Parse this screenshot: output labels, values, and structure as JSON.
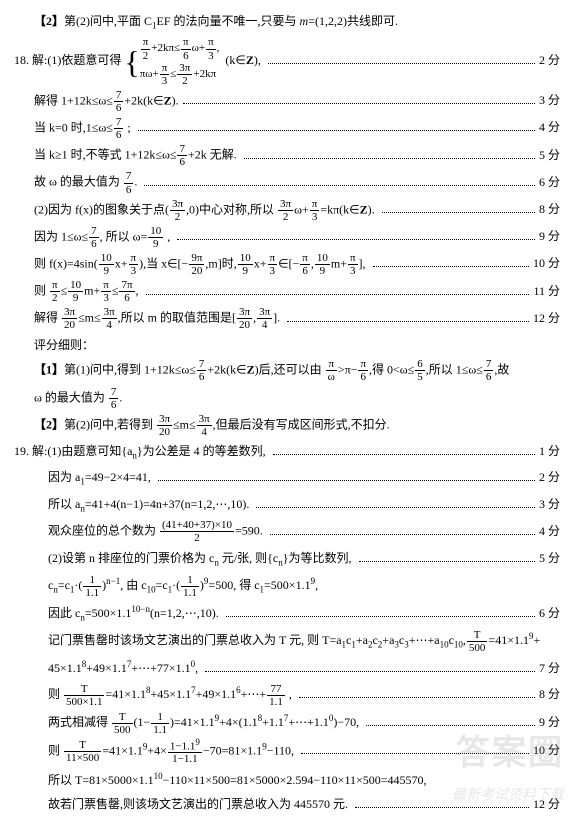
{
  "lines": [
    {
      "type": "plain",
      "indent": 1,
      "html": "<span class='bold'>【2】</span>第(2)问中,平面 C<sub>1</sub>EF 的法向量不唯一,只要与 <i>m</i>=(1,2,2)共线即可."
    },
    {
      "type": "scored",
      "indent": 0,
      "score": "2 分",
      "html": "18. 解:(1)依题意可得 <span class='brace-block'><span class='brace'>{</span><span class='brace-content'><span class='frac'><span class='num'>π</span><span class='den'>2</span></span>+2kπ≤<span class='frac'><span class='num'>π</span><span class='den'>6</span></span>ω+<span class='frac'><span class='num'>π</span><span class='den'>3</span></span>,<br>πω+<span class='frac'><span class='num'>π</span><span class='den'>3</span></span>≤<span class='frac'><span class='num'>3π</span><span class='den'>2</span></span>+2kπ</span></span>&nbsp;&nbsp;(k∈<b>Z</b>),&nbsp;"
    },
    {
      "type": "scored",
      "indent": 1,
      "score": "3 分",
      "html": "解得 1+12k≤ω≤<span class='frac'><span class='num'>7</span><span class='den'>6</span></span>+2k(k∈<b>Z</b>)."
    },
    {
      "type": "scored",
      "indent": 1,
      "score": "4 分",
      "html": "当 k=0 时,1≤ω≤<span class='frac'><span class='num'>7</span><span class='den'>6</span></span> ;&nbsp;"
    },
    {
      "type": "scored",
      "indent": 1,
      "score": "5 分",
      "html": "当 k≥1 时,不等式 1+12k≤ω≤<span class='frac'><span class='num'>7</span><span class='den'>6</span></span>+2k 无解.&nbsp;"
    },
    {
      "type": "scored",
      "indent": 1,
      "score": "6 分",
      "html": "故 ω 的最大值为 <span class='frac'><span class='num'>7</span><span class='den'>6</span></span>.&nbsp;"
    },
    {
      "type": "scored",
      "indent": 1,
      "score": "8 分",
      "html": "(2)因为 f(x)的图象关于点(<span class='frac'><span class='num'>3π</span><span class='den'>2</span></span>,0)中心对称,所以 <span class='frac'><span class='num'>3π</span><span class='den'>2</span></span>ω+<span class='frac'><span class='num'>π</span><span class='den'>3</span></span>=kπ(k∈<b>Z</b>).&nbsp;"
    },
    {
      "type": "scored",
      "indent": 1,
      "score": "9 分",
      "html": "因为 1≤ω≤<span class='frac'><span class='num'>7</span><span class='den'>6</span></span>, 所以 ω=<span class='frac'><span class='num'>10</span><span class='den'>9</span></span> ,&nbsp;"
    },
    {
      "type": "scored",
      "indent": 1,
      "score": "10 分",
      "html": "则 f(x)=4sin(<span class='frac'><span class='num'>10</span><span class='den'>9</span></span>x+<span class='frac'><span class='num'>π</span><span class='den'>3</span></span>),当 x∈[−<span class='frac'><span class='num'>9π</span><span class='den'>20</span></span>,m]时,<span class='frac'><span class='num'>10</span><span class='den'>9</span></span>x+<span class='frac'><span class='num'>π</span><span class='den'>3</span></span>∈[−<span class='frac'><span class='num'>π</span><span class='den'>6</span></span>,<span class='frac'><span class='num'>10</span><span class='den'>9</span></span>m+<span class='frac'><span class='num'>π</span><span class='den'>3</span></span>],&nbsp;"
    },
    {
      "type": "scored",
      "indent": 1,
      "score": "11 分",
      "html": "则 <span class='frac'><span class='num'>π</span><span class='den'>2</span></span>≤<span class='frac'><span class='num'>10</span><span class='den'>9</span></span>m+<span class='frac'><span class='num'>π</span><span class='den'>3</span></span>≤<span class='frac'><span class='num'>7π</span><span class='den'>6</span></span>,&nbsp;"
    },
    {
      "type": "scored",
      "indent": 1,
      "score": "12 分",
      "html": "解得 <span class='frac'><span class='num'>3π</span><span class='den'>20</span></span>≤m≤<span class='frac'><span class='num'>3π</span><span class='den'>4</span></span>,所以 m 的取值范围是[<span class='frac'><span class='num'>3π</span><span class='den'>20</span></span>,<span class='frac'><span class='num'>3π</span><span class='den'>4</span></span>].&nbsp;"
    },
    {
      "type": "plain",
      "indent": 1,
      "html": "评分细则："
    },
    {
      "type": "plain",
      "indent": 1,
      "html": "<span class='bold'>【1】</span>第(1)问中,得到 1+12k≤ω≤<span class='frac'><span class='num'>7</span><span class='den'>6</span></span>+2k(k∈<b>Z</b>)后,还可以由 <span class='frac'><span class='num'>π</span><span class='den'>ω</span></span>&gt;π−<span class='frac'><span class='num'>π</span><span class='den'>6</span></span>,得 0&lt;ω≤<span class='frac'><span class='num'>6</span><span class='den'>5</span></span>,所以 1≤ω≤<span class='frac'><span class='num'>7</span><span class='den'>6</span></span>,故"
    },
    {
      "type": "plain",
      "indent": 1,
      "html": "ω 的最大值为 <span class='frac'><span class='num'>7</span><span class='den'>6</span></span>."
    },
    {
      "type": "plain",
      "indent": 1,
      "html": "<span class='bold'>【2】</span>第(2)问中,若得到 <span class='frac'><span class='num'>3π</span><span class='den'>20</span></span>≤m≤<span class='frac'><span class='num'>3π</span><span class='den'>4</span></span>,但最后没有写成区间形式,不扣分."
    },
    {
      "type": "scored",
      "indent": 0,
      "score": "1 分",
      "html": "19. 解:(1)由题意可知{a<sub>n</sub>}为公差是 4 的等差数列,&nbsp;"
    },
    {
      "type": "scored",
      "indent": 2,
      "score": "2 分",
      "html": "因为 a<sub>1</sub>=49−2×4=41,&nbsp;"
    },
    {
      "type": "scored",
      "indent": 2,
      "score": "3 分",
      "html": "所以 a<sub>n</sub>=41+4(n−1)=4n+37(n=1,2,⋯,10).&nbsp;"
    },
    {
      "type": "scored",
      "indent": 2,
      "score": "4 分",
      "html": "观众座位的总个数为 <span class='frac'><span class='num'>(41+40+37)×10</span><span class='den'>2</span></span>=590.&nbsp;"
    },
    {
      "type": "scored",
      "indent": 2,
      "score": "5 分",
      "html": "(2)设第 n 排座位的门票价格为 c<sub>n</sub> 元/张, 则{c<sub>n</sub>}为等比数列,&nbsp;"
    },
    {
      "type": "plain",
      "indent": 2,
      "html": "c<sub>n</sub>=c<sub>1</sub>·(<span class='frac'><span class='num'>1</span><span class='den'>1.1</span></span>)<sup>n−1</sup>, 由 c<sub>10</sub>=c<sub>1</sub>·(<span class='frac'><span class='num'>1</span><span class='den'>1.1</span></span>)<sup>9</sup>=500, 得 c<sub>1</sub>=500×1.1<sup>9</sup>,"
    },
    {
      "type": "scored",
      "indent": 2,
      "score": "6 分",
      "html": "因此 c<sub>n</sub>=500×1.1<sup>10−n</sup>(n=1,2,⋯,10).&nbsp;"
    },
    {
      "type": "plain",
      "indent": 2,
      "html": "记门票售罄时该场文艺演出的门票总收入为 T 元, 则 T=a<sub>1</sub>c<sub>1</sub>+a<sub>2</sub>c<sub>2</sub>+a<sub>3</sub>c<sub>3</sub>+⋯+a<sub>10</sub>c<sub>10</sub>,<span class='frac'><span class='num'>T</span><span class='den'>500</span></span>=41×1.1<sup>9</sup>+"
    },
    {
      "type": "scored",
      "indent": 2,
      "score": "7 分",
      "html": "45×1.1<sup>8</sup>+49×1.1<sup>7</sup>+⋯+77×1.1<sup>0</sup>,&nbsp;"
    },
    {
      "type": "scored",
      "indent": 2,
      "score": "8 分",
      "html": "则 <span class='frac'><span class='num'>T</span><span class='den'>500×1.1</span></span>=41×1.1<sup>8</sup>+45×1.1<sup>7</sup>+49×1.1<sup>6</sup>+⋯+<span class='frac'><span class='num'>77</span><span class='den'>1.1</span></span> ,&nbsp;"
    },
    {
      "type": "scored",
      "indent": 2,
      "score": "9 分",
      "html": "两式相减得 <span class='frac'><span class='num'>T</span><span class='den'>500</span></span>(1−<span class='frac'><span class='num'>1</span><span class='den'>1.1</span></span>)=41×1.1<sup>9</sup>+4×(1.1<sup>8</sup>+1.1<sup>7</sup>+⋯+1.1<sup>0</sup>)−70,&nbsp;"
    },
    {
      "type": "scored",
      "indent": 2,
      "score": "10 分",
      "html": "则 <span class='frac'><span class='num'>T</span><span class='den'>11×500</span></span>=41×1.1<sup>9</sup>+4×<span class='frac'><span class='num'>1−1.1<sup>9</sup></span><span class='den'>1−1.1</span></span>−70=81×1.1<sup>9</sup>−110,&nbsp;"
    },
    {
      "type": "plain",
      "indent": 2,
      "html": "所以 T=81×5000×1.1<sup>10</sup>−110×11×500=81×5000×2.594−110×11×500=445570,"
    },
    {
      "type": "scored",
      "indent": 2,
      "score": "12 分",
      "html": "故若门票售罄,则该场文艺演出的门票总收入为 445570 元.&nbsp;"
    }
  ],
  "watermark_main": "答案圈",
  "watermark_sub": "最新考试资料下载"
}
